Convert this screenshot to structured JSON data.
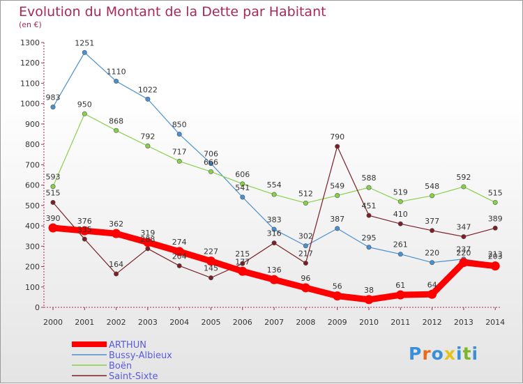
{
  "title": "Evolution du Montant de la Dette par Habitant",
  "subtitle": "(en €)",
  "logo": {
    "text": "Proxiti",
    "letters": [
      "P",
      "r",
      "o",
      "x",
      "i",
      "t",
      "i"
    ],
    "colors": [
      "#3b8fd8",
      "#e86a1a",
      "#3b8fd8",
      "#e8c21a",
      "#3b8fd8",
      "#7bb52a",
      "#3b8fd8"
    ]
  },
  "chart_data": {
    "type": "line",
    "title": "Evolution du Montant de la Dette par Habitant",
    "ylabel": "(en €)",
    "xlabel": "",
    "x": [
      "2000",
      "2001",
      "2002",
      "2003",
      "2004",
      "2005",
      "2006",
      "2007",
      "2008",
      "2009",
      "2010",
      "2011",
      "2012",
      "2013",
      "2014"
    ],
    "ylim": [
      0,
      1300
    ],
    "yticks": [
      0,
      100,
      200,
      300,
      400,
      500,
      600,
      700,
      800,
      900,
      1000,
      1100,
      1200,
      1300
    ],
    "grid": false,
    "legend_position": "bottom-left",
    "series": [
      {
        "name": "ARTHUN",
        "color": "#ff0000",
        "values": [
          390,
          376,
          362,
          319,
          274,
          227,
          177,
          136,
          96,
          56,
          38,
          61,
          64,
          220,
          203
        ]
      },
      {
        "name": "Bussy-Albieux",
        "color": "#4a8fcf",
        "values": [
          983,
          1251,
          1110,
          1022,
          850,
          706,
          541,
          383,
          302,
          387,
          295,
          261,
          220,
          237,
          213
        ]
      },
      {
        "name": "Boën",
        "color": "#88d04a",
        "values": [
          593,
          950,
          868,
          792,
          717,
          666,
          606,
          554,
          512,
          549,
          588,
          519,
          548,
          592,
          515
        ]
      },
      {
        "name": "Saint-Sixte",
        "color": "#7a1f23",
        "values": [
          515,
          335,
          164,
          288,
          204,
          145,
          215,
          316,
          217,
          790,
          451,
          410,
          377,
          347,
          389
        ]
      }
    ]
  }
}
